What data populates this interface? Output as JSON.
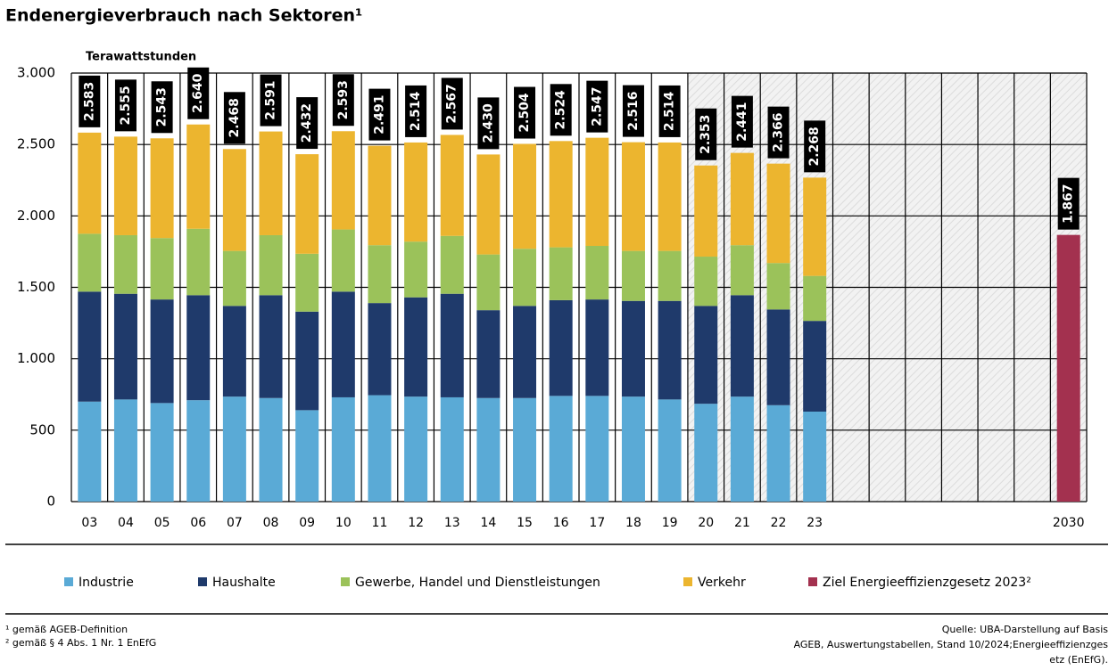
{
  "chart_data": {
    "type": "stacked-bar",
    "title": "Endenergieverbrauch nach Sektoren¹",
    "y_label": "Terawattstunden",
    "categories": [
      "03",
      "04",
      "05",
      "06",
      "07",
      "08",
      "09",
      "10",
      "11",
      "12",
      "13",
      "14",
      "15",
      "16",
      "17",
      "18",
      "19",
      "20",
      "21",
      "22",
      "23",
      null,
      null,
      null,
      null,
      null,
      null,
      "2030"
    ],
    "series": [
      {
        "name": "Industrie",
        "color": "#5aaad6",
        "values": [
          700,
          715,
          690,
          710,
          735,
          725,
          640,
          730,
          745,
          735,
          730,
          725,
          725,
          740,
          740,
          735,
          715,
          685,
          735,
          675,
          630,
          null,
          null,
          null,
          null,
          null,
          null,
          null
        ]
      },
      {
        "name": "Haushalte",
        "color": "#1f3a6b",
        "values": [
          770,
          740,
          725,
          735,
          635,
          720,
          690,
          740,
          645,
          695,
          725,
          615,
          645,
          670,
          675,
          670,
          690,
          685,
          710,
          670,
          635,
          null,
          null,
          null,
          null,
          null,
          null,
          null
        ]
      },
      {
        "name": "Gewerbe, Handel und Dienstleistungen",
        "color": "#9bc25a",
        "values": [
          405,
          410,
          430,
          465,
          385,
          420,
          405,
          435,
          405,
          390,
          405,
          390,
          400,
          370,
          375,
          350,
          350,
          345,
          350,
          325,
          315,
          null,
          null,
          null,
          null,
          null,
          null,
          null
        ]
      },
      {
        "name": "Verkehr",
        "color": "#ecb52f",
        "values": [
          708,
          690,
          698,
          730,
          713,
          726,
          697,
          688,
          696,
          694,
          707,
          700,
          734,
          744,
          757,
          761,
          759,
          638,
          646,
          696,
          688,
          null,
          null,
          null,
          null,
          null,
          null,
          null
        ]
      },
      {
        "name": "Ziel Energieeffizienzgesetz 2023²",
        "color": "#a3314f",
        "values": [
          null,
          null,
          null,
          null,
          null,
          null,
          null,
          null,
          null,
          null,
          null,
          null,
          null,
          null,
          null,
          null,
          null,
          null,
          null,
          null,
          null,
          null,
          null,
          null,
          null,
          null,
          null,
          1867
        ],
        "value_labels": [
          null,
          null,
          null,
          null,
          null,
          null,
          null,
          null,
          null,
          null,
          null,
          null,
          null,
          null,
          null,
          null,
          null,
          null,
          null,
          null,
          null,
          null,
          null,
          null,
          null,
          null,
          null,
          "1.867"
        ]
      }
    ],
    "totals": {
      "values": [
        2583,
        2555,
        2543,
        2640,
        2468,
        2591,
        2432,
        2593,
        2491,
        2514,
        2567,
        2430,
        2504,
        2524,
        2547,
        2516,
        2514,
        2353,
        2441,
        2366,
        2268,
        null,
        null,
        null,
        null,
        null,
        null,
        null
      ],
      "value_labels": [
        "2.583",
        "2.555",
        "2.543",
        "2.640",
        "2.468",
        "2.591",
        "2.432",
        "2.593",
        "2.491",
        "2.514",
        "2.567",
        "2.430",
        "2.504",
        "2.524",
        "2.547",
        "2.516",
        "2.514",
        "2.353",
        "2.441",
        "2.366",
        "2.268",
        null,
        null,
        null,
        null,
        null,
        null,
        null
      ]
    },
    "ylim": [
      0,
      3000
    ],
    "yticks": [
      0,
      500,
      {
        "value": 1000,
        "label": "1.000"
      },
      {
        "value": 1500,
        "label": "1.500"
      },
      {
        "value": 2000,
        "label": "2.000"
      },
      {
        "value": 2500,
        "label": "2.500"
      },
      {
        "value": 3000,
        "label": "3.000"
      }
    ],
    "grid": true,
    "footnotes": [
      "¹ gemäß AGEB-Definition",
      "² gemäß § 4 Abs. 1 Nr. 1 EnEfG"
    ],
    "source": [
      "Quelle: UBA-Darstellung auf Basis",
      "AGEB, Auswertungstabellen, Stand 10/2024;Energieeffizienzges",
      "etz (EnEfG)."
    ]
  }
}
